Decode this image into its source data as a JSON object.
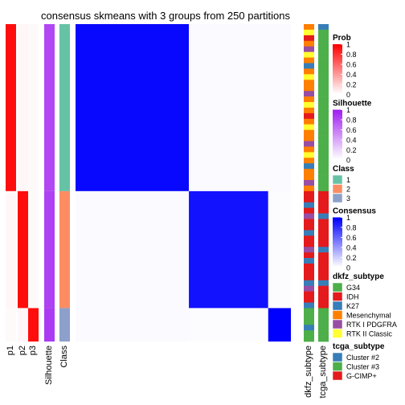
{
  "chart_data": {
    "type": "heatmap",
    "title": "consensus skmeans with 3 groups from 250 partitions",
    "matrix_fill": "consensus",
    "column_labels": [
      "p1",
      "p2",
      "p3",
      "Silhouette",
      "Class",
      "dkfz_subtype",
      "tcga_subtype"
    ],
    "classes": [
      {
        "id": "1",
        "count": 30,
        "p1": 0.95,
        "p2": 0.03,
        "p3": 0.02,
        "silhouette": 0.82
      },
      {
        "id": "2",
        "count": 21,
        "p1": 0.03,
        "p2": 0.95,
        "p3": 0.02,
        "silhouette": 0.85
      },
      {
        "id": "3",
        "count": 6,
        "p1": 0.02,
        "p2": 0.03,
        "p3": 0.95,
        "silhouette": 0.88
      }
    ],
    "consensus_blocks": [
      {
        "row_class": "1",
        "col_class": "1",
        "value": 0.97
      },
      {
        "row_class": "2",
        "col_class": "2",
        "value": 0.93
      },
      {
        "row_class": "3",
        "col_class": "3",
        "value": 1.0
      },
      {
        "row_class": "1",
        "col_class": "2",
        "value": 0.02
      },
      {
        "row_class": "1",
        "col_class": "3",
        "value": 0.02
      },
      {
        "row_class": "2",
        "col_class": "3",
        "value": 0.01
      }
    ],
    "legends": [
      {
        "title": "Prob",
        "ticks": [
          "1",
          "0.8",
          "0.6",
          "0.4",
          "0.2",
          "0"
        ],
        "colors": [
          "#ff0000",
          "#ffffff"
        ]
      },
      {
        "title": "Silhouette",
        "ticks": [
          "1",
          "0.8",
          "0.6",
          "0.4",
          "0.2",
          "0"
        ],
        "colors": [
          "#a020f0",
          "#ffffff"
        ]
      },
      {
        "title": "Class",
        "items": [
          {
            "label": "1",
            "color": "#66c2a5"
          },
          {
            "label": "2",
            "color": "#fc8d62"
          },
          {
            "label": "3",
            "color": "#8da0cb"
          }
        ]
      },
      {
        "title": "Consensus",
        "ticks": [
          "1",
          "0.8",
          "0.6",
          "0.4",
          "0.2",
          "0"
        ],
        "colors": [
          "#0000ff",
          "#ffffff"
        ]
      },
      {
        "title": "dkfz_subtype",
        "items": [
          {
            "label": "G34",
            "color": "#4daf4a"
          },
          {
            "label": "IDH",
            "color": "#e41a1c"
          },
          {
            "label": "K27",
            "color": "#377eb8"
          },
          {
            "label": "Mesenchymal",
            "color": "#ff7f00"
          },
          {
            "label": "RTK I PDGFRA",
            "color": "#984ea3"
          },
          {
            "label": "RTK II Classic",
            "color": "#ffff33"
          }
        ]
      },
      {
        "title": "tcga_subtype",
        "items": [
          {
            "label": "Cluster #2",
            "color": "#377eb8"
          },
          {
            "label": "Cluster #3",
            "color": "#4daf4a"
          },
          {
            "label": "G-CIMP+",
            "color": "#e41a1c"
          }
        ]
      }
    ]
  }
}
